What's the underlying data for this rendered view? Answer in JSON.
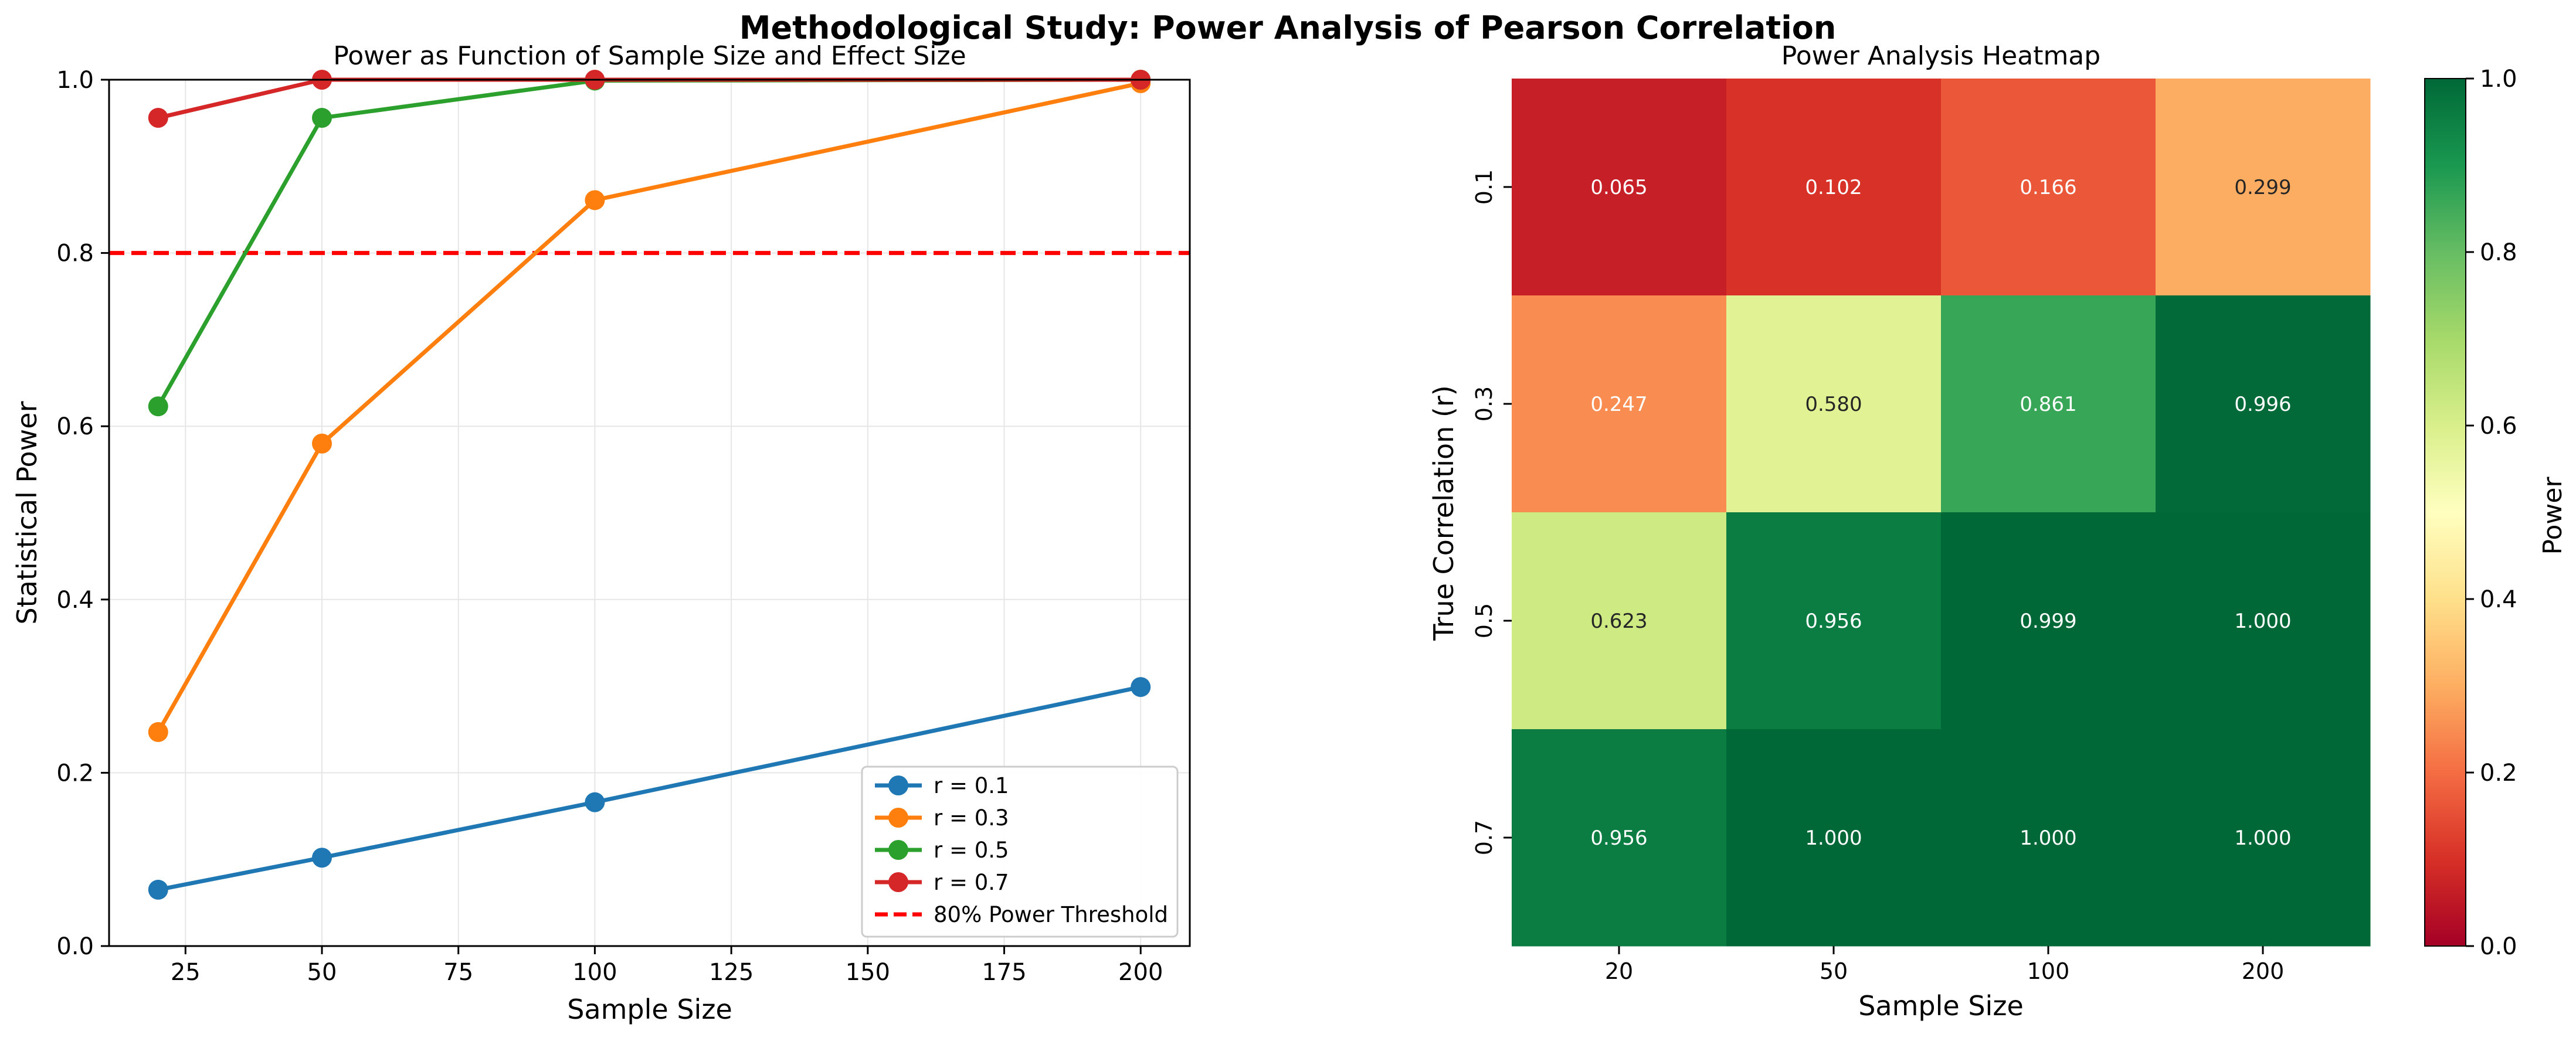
{
  "suptitle": "Methodological Study: Power Analysis of Pearson Correlation",
  "chart_data": [
    {
      "type": "line",
      "title": "Power as Function of Sample Size and Effect Size",
      "xlabel": "Sample Size",
      "ylabel": "Statistical Power",
      "x": [
        20,
        50,
        100,
        200
      ],
      "xlim": [
        11,
        209
      ],
      "ylim": [
        0,
        1
      ],
      "xticks": [
        25,
        50,
        75,
        100,
        125,
        150,
        175,
        200
      ],
      "yticks": [
        0.0,
        0.2,
        0.4,
        0.6,
        0.8,
        1.0
      ],
      "grid": true,
      "legend_position": "lower-right",
      "series": [
        {
          "name": "r = 0.1",
          "color": "#1f77b4",
          "values": [
            0.065,
            0.102,
            0.166,
            0.299
          ]
        },
        {
          "name": "r = 0.3",
          "color": "#ff7f0e",
          "values": [
            0.247,
            0.58,
            0.861,
            0.996
          ]
        },
        {
          "name": "r = 0.5",
          "color": "#2ca02c",
          "values": [
            0.623,
            0.956,
            0.999,
            1.0
          ]
        },
        {
          "name": "r = 0.7",
          "color": "#d62728",
          "values": [
            0.956,
            1.0,
            1.0,
            1.0
          ]
        }
      ],
      "threshold": {
        "name": "80% Power Threshold",
        "value": 0.8,
        "color": "#ff0000",
        "style": "dashed"
      }
    },
    {
      "type": "heatmap",
      "title": "Power Analysis Heatmap",
      "xlabel": "Sample Size",
      "ylabel": "True Correlation (r)",
      "x_categories": [
        "20",
        "50",
        "100",
        "200"
      ],
      "y_categories": [
        "0.1",
        "0.3",
        "0.5",
        "0.7"
      ],
      "values": [
        [
          0.065,
          0.102,
          0.166,
          0.299
        ],
        [
          0.247,
          0.58,
          0.861,
          0.996
        ],
        [
          0.623,
          0.956,
          0.999,
          1.0
        ],
        [
          0.956,
          1.0,
          1.0,
          1.0
        ]
      ],
      "annotations": [
        [
          "0.065",
          "0.102",
          "0.166",
          "0.299"
        ],
        [
          "0.247",
          "0.580",
          "0.861",
          "0.996"
        ],
        [
          "0.623",
          "0.956",
          "0.999",
          "1.000"
        ],
        [
          "0.956",
          "1.000",
          "1.000",
          "1.000"
        ]
      ],
      "colormap": "RdYlGn",
      "vmin": 0,
      "vmax": 1,
      "colorbar": {
        "label": "Power",
        "ticks": [
          "0.0",
          "0.2",
          "0.4",
          "0.6",
          "0.8",
          "1.0"
        ]
      }
    }
  ]
}
